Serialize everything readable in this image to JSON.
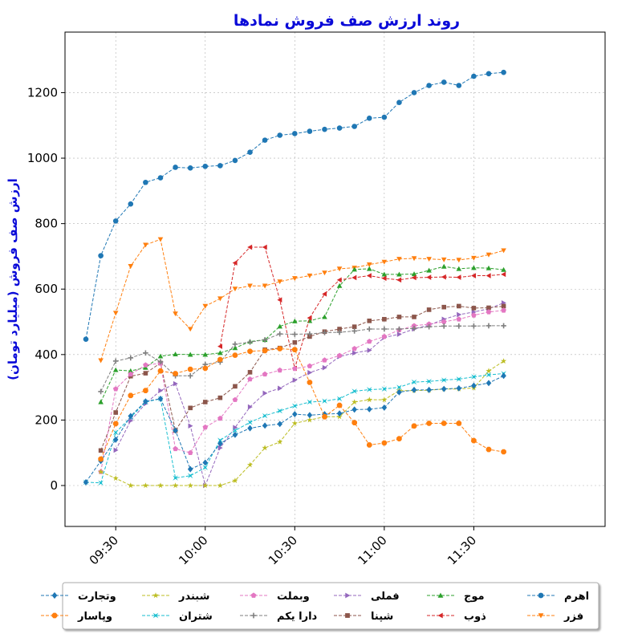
{
  "chart_data": {
    "type": "line",
    "title": "روند ارزش صف فروش نمادها",
    "xlabel": "",
    "ylabel": "ارزش صف فروش (میلیارد تومان)",
    "x_tick_labels": [
      "09:30",
      "10:00",
      "10:30",
      "11:00",
      "11:30"
    ],
    "x_tick_minutes": [
      570,
      600,
      630,
      660,
      690
    ],
    "y_ticks": [
      0,
      200,
      400,
      600,
      800,
      1000,
      1200
    ],
    "xlim_minutes": [
      553,
      734
    ],
    "ylim": [
      -125,
      1385
    ],
    "grid": true,
    "legend_placement": "bottom",
    "x_times": [
      "09:15",
      "09:20",
      "09:25",
      "09:30",
      "09:35",
      "09:40",
      "09:45",
      "09:50",
      "09:55",
      "10:00",
      "10:05",
      "10:10",
      "10:15",
      "10:20",
      "10:25",
      "10:30",
      "10:35",
      "10:40",
      "10:45",
      "10:50",
      "10:55",
      "11:00",
      "11:05",
      "11:10",
      "11:15",
      "11:20",
      "11:25",
      "11:30",
      "11:35",
      "11:40"
    ],
    "series": [
      {
        "name": "اهرم",
        "color": "#1f77b4",
        "marker": "circle",
        "values": [
          447,
          702,
          808,
          860,
          926,
          940,
          972,
          970,
          975,
          977,
          993,
          1018,
          1055,
          1070,
          1075,
          1082,
          1088,
          1092,
          1097,
          1122,
          1125,
          1170,
          1200,
          1222,
          1232,
          1222,
          1250,
          1258,
          1262
        ]
      },
      {
        "name": "فزر",
        "color": "#ff7f0e",
        "marker": "tri-down",
        "values": [
          382,
          527,
          670,
          735,
          752,
          525,
          478,
          548,
          571,
          601,
          610,
          610,
          623,
          633,
          641,
          650,
          662,
          665,
          675,
          683,
          692,
          694,
          692,
          690,
          689,
          695,
          705,
          718
        ]
      },
      {
        "name": "موج",
        "color": "#2ca02c",
        "marker": "tri-up",
        "values": [
          255,
          353,
          350,
          360,
          395,
          401,
          400,
          400,
          405,
          420,
          440,
          445,
          486,
          502,
          503,
          515,
          610,
          660,
          662,
          645,
          645,
          646,
          657,
          669,
          662,
          665,
          664,
          659
        ]
      },
      {
        "name": "ذوب",
        "color": "#d62728",
        "marker": "tri-left",
        "values": [
          425,
          680,
          728,
          728,
          567,
          358,
          512,
          585,
          628,
          635,
          641,
          633,
          628,
          635,
          636,
          637,
          636,
          641,
          641,
          645
        ]
      },
      {
        "name": "فملی",
        "color": "#9467bd",
        "marker": "tri-right",
        "values": [
          108,
          198,
          250,
          290,
          311,
          182,
          0,
          115,
          177,
          240,
          282,
          297,
          322,
          345,
          360,
          394,
          405,
          413,
          452,
          462,
          478,
          490,
          508,
          522,
          530,
          540,
          558
        ]
      },
      {
        "name": "شپنا",
        "color": "#8c564b",
        "marker": "square",
        "values": [
          107,
          223,
          334,
          343,
          374,
          168,
          237,
          255,
          268,
          303,
          346,
          415,
          420,
          437,
          455,
          470,
          478,
          485,
          503,
          508,
          515,
          515,
          537,
          545,
          548,
          542,
          543,
          548
        ]
      },
      {
        "name": "وبملت",
        "color": "#e377c2",
        "marker": "pentagon",
        "values": [
          42,
          295,
          340,
          368,
          373,
          112,
          100,
          178,
          205,
          262,
          325,
          340,
          352,
          357,
          365,
          383,
          397,
          418,
          440,
          455,
          475,
          488,
          493,
          500,
          508,
          520,
          530,
          535
        ]
      },
      {
        "name": "دارا یکم",
        "color": "#7f7f7f",
        "marker": "plus",
        "values": [
          287,
          380,
          390,
          405,
          378,
          335,
          335,
          370,
          377,
          432,
          438,
          445,
          463,
          462,
          463,
          467,
          468,
          472,
          478,
          478,
          478,
          480,
          485,
          487,
          487,
          487,
          488,
          488
        ]
      },
      {
        "name": "شبندر",
        "color": "#bcbd22",
        "marker": "star",
        "values": [
          42,
          22,
          0,
          0,
          0,
          0,
          0,
          0,
          0,
          15,
          63,
          115,
          133,
          190,
          200,
          210,
          210,
          255,
          262,
          262,
          290,
          290,
          291,
          295,
          295,
          298,
          350,
          380
        ]
      },
      {
        "name": "شتران",
        "color": "#17becf",
        "marker": "x",
        "values": [
          10,
          8,
          162,
          208,
          255,
          265,
          23,
          30,
          55,
          138,
          168,
          193,
          213,
          228,
          243,
          255,
          258,
          265,
          288,
          293,
          295,
          300,
          316,
          318,
          322,
          325,
          332,
          338,
          342
        ]
      },
      {
        "name": "وتجارت",
        "color": "#1f77b4",
        "marker": "diamond",
        "values": [
          10,
          75,
          140,
          212,
          257,
          265,
          168,
          50,
          70,
          128,
          155,
          175,
          183,
          188,
          218,
          215,
          218,
          220,
          232,
          233,
          238,
          285,
          292,
          292,
          295,
          297,
          305,
          313,
          335
        ]
      },
      {
        "name": "وپاسار",
        "color": "#ff7f0e",
        "marker": "octagon",
        "values": [
          81,
          189,
          275,
          290,
          350,
          342,
          355,
          358,
          385,
          398,
          410,
          412,
          418,
          415,
          315,
          210,
          245,
          192,
          124,
          130,
          143,
          182,
          190,
          190,
          190,
          137,
          110,
          103
        ]
      }
    ]
  }
}
